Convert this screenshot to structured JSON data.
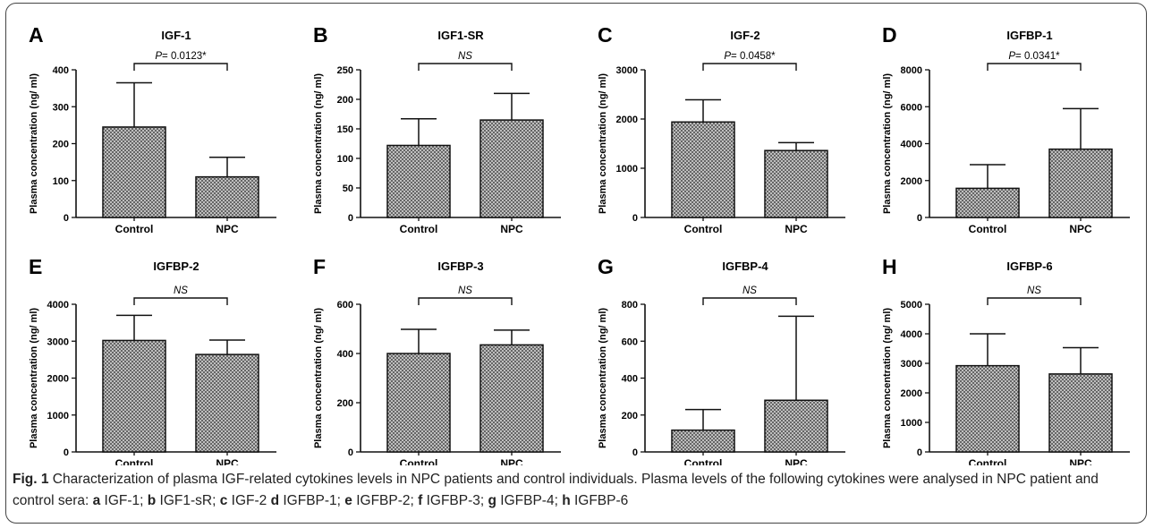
{
  "figure": {
    "caption": {
      "label": "Fig. 1",
      "text_intro": "Characterization of plasma IGF-related cytokines levels in NPC patients and control individuals. Plasma levels of the following cytokines were analysed in NPC patient and control sera: ",
      "items": [
        {
          "letter": "a",
          "text": "IGF-1; "
        },
        {
          "letter": "b",
          "text": "IGF1-sR; "
        },
        {
          "letter": "c",
          "text": "IGF-2 "
        },
        {
          "letter": "d",
          "text": "IGFBP-1; "
        },
        {
          "letter": "e",
          "text": "IGFBP-2; "
        },
        {
          "letter": "f",
          "text": "IGFBP-3; "
        },
        {
          "letter": "g",
          "text": "IGFBP-4; "
        },
        {
          "letter": "h",
          "text": "IGFBP-6"
        }
      ]
    }
  },
  "chart_data": [
    {
      "type": "bar",
      "panel": "A",
      "title": "IGF-1",
      "ylabel": "Plasma concentration (ng/ ml)",
      "categories": [
        "Control",
        "NPC"
      ],
      "values": [
        245,
        110
      ],
      "errors": [
        120,
        53
      ],
      "ylim": [
        0,
        400
      ],
      "yticks": [
        0,
        100,
        200,
        300,
        400
      ],
      "significance": {
        "prefix": "P",
        "text": "= 0.0123*"
      }
    },
    {
      "type": "bar",
      "panel": "B",
      "title": "IGF1-SR",
      "ylabel": "Plasma concentration (ng/ ml)",
      "categories": [
        "Control",
        "NPC"
      ],
      "values": [
        122,
        165
      ],
      "errors": [
        45,
        45
      ],
      "ylim": [
        0,
        250
      ],
      "yticks": [
        0,
        50,
        100,
        150,
        200,
        250
      ],
      "significance": {
        "prefix": "",
        "text": "NS"
      }
    },
    {
      "type": "bar",
      "panel": "C",
      "title": "IGF-2",
      "ylabel": "Plasma concentration (ng/ ml)",
      "categories": [
        "Control",
        "NPC"
      ],
      "values": [
        1940,
        1360
      ],
      "errors": [
        450,
        160
      ],
      "ylim": [
        0,
        3000
      ],
      "yticks": [
        0,
        1000,
        2000,
        3000
      ],
      "significance": {
        "prefix": "P",
        "text": "= 0.0458*"
      }
    },
    {
      "type": "bar",
      "panel": "D",
      "title": "IGFBP-1",
      "ylabel": "Plasma concentration (ng/ ml)",
      "categories": [
        "Control",
        "NPC"
      ],
      "values": [
        1580,
        3700
      ],
      "errors": [
        1280,
        2200
      ],
      "ylim": [
        0,
        8000
      ],
      "yticks": [
        0,
        2000,
        4000,
        6000,
        8000
      ],
      "significance": {
        "prefix": "P",
        "text": "= 0.0341*"
      }
    },
    {
      "type": "bar",
      "panel": "E",
      "title": "IGFBP-2",
      "ylabel": "Plasma concentration (ng/ ml)",
      "categories": [
        "Control",
        "NPC"
      ],
      "values": [
        3020,
        2640
      ],
      "errors": [
        680,
        390
      ],
      "ylim": [
        0,
        4000
      ],
      "yticks": [
        0,
        1000,
        2000,
        3000,
        4000
      ],
      "significance": {
        "prefix": "",
        "text": "NS"
      }
    },
    {
      "type": "bar",
      "panel": "F",
      "title": "IGFBP-3",
      "ylabel": "Plasma concentration (ng/ ml)",
      "categories": [
        "Control",
        "NPC"
      ],
      "values": [
        400,
        435
      ],
      "errors": [
        98,
        60
      ],
      "ylim": [
        0,
        600
      ],
      "yticks": [
        0,
        200,
        400,
        600
      ],
      "significance": {
        "prefix": "",
        "text": "NS"
      }
    },
    {
      "type": "bar",
      "panel": "G",
      "title": "IGFBP-4",
      "ylabel": "Plasma concentration (ng/ ml)",
      "categories": [
        "Control",
        "NPC"
      ],
      "values": [
        118,
        280
      ],
      "errors": [
        112,
        455
      ],
      "ylim": [
        0,
        800
      ],
      "yticks": [
        0,
        200,
        400,
        600,
        800
      ],
      "significance": {
        "prefix": "",
        "text": "NS"
      }
    },
    {
      "type": "bar",
      "panel": "H",
      "title": "IGFBP-6",
      "ylabel": "Plasma concentration (ng/ ml)",
      "categories": [
        "Control",
        "NPC"
      ],
      "values": [
        2920,
        2640
      ],
      "errors": [
        1080,
        890
      ],
      "ylim": [
        0,
        5000
      ],
      "yticks": [
        0,
        1000,
        2000,
        3000,
        4000,
        5000
      ],
      "significance": {
        "prefix": "",
        "text": "NS"
      }
    }
  ]
}
